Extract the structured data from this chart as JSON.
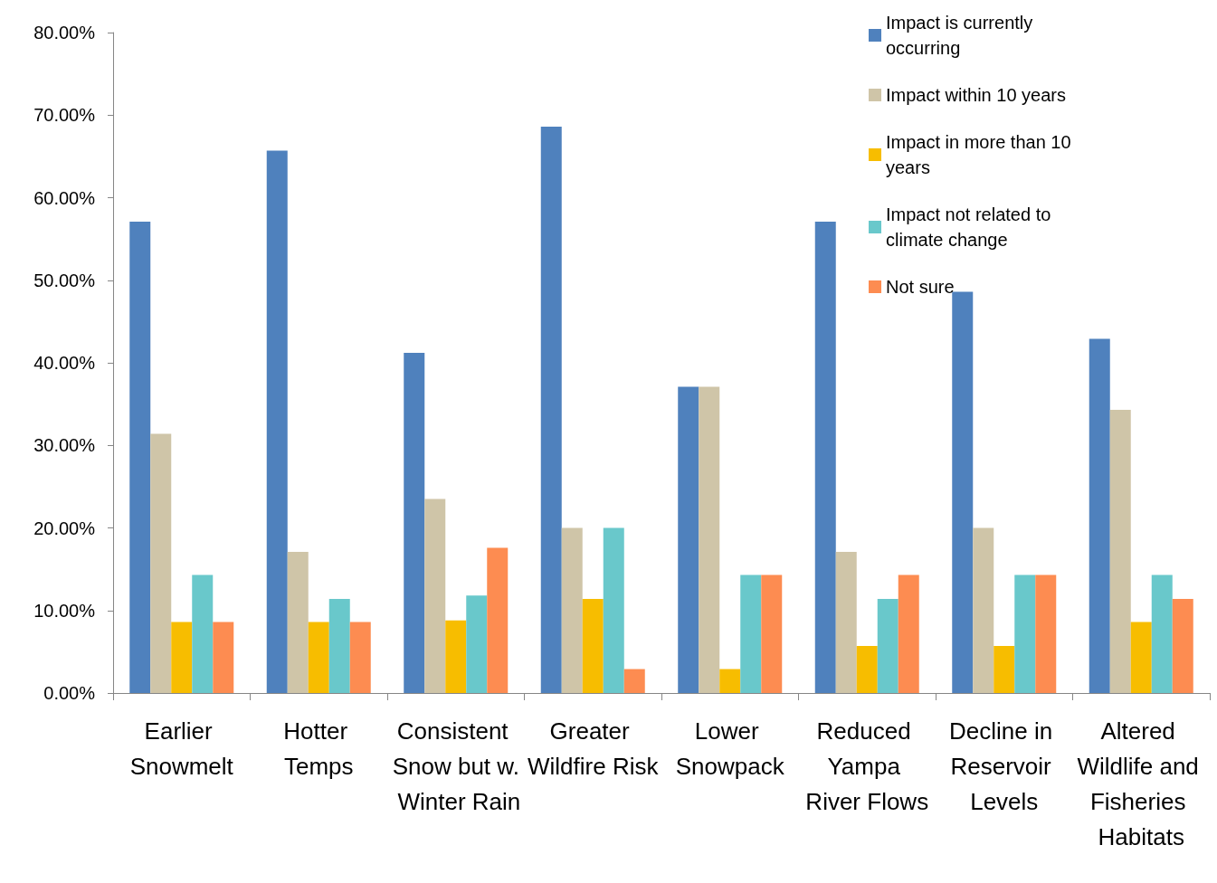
{
  "chart_data": {
    "type": "bar",
    "categories": [
      "Earlier Snowmelt",
      "Hotter Temps",
      "Consistent Snow but w. Winter Rain",
      "Greater Wildfire Risk",
      "Lower Snowpack",
      "Reduced Yampa River Flows",
      "Decline in Reservoir Levels",
      "Altered Wildlife and Fisheries Habitats"
    ],
    "series": [
      {
        "name": "Impact is currently occurring",
        "color": "#4f81bd",
        "values": [
          57.1,
          65.7,
          41.2,
          68.6,
          37.1,
          57.1,
          48.6,
          42.9
        ]
      },
      {
        "name": "Impact within 10 years",
        "color": "#cfc5a8",
        "values": [
          31.4,
          17.1,
          23.5,
          20.0,
          37.1,
          17.1,
          20.0,
          34.3
        ]
      },
      {
        "name": "Impact in more than 10 years",
        "color": "#f7bd00",
        "values": [
          8.6,
          8.6,
          8.8,
          11.4,
          2.9,
          5.7,
          5.7,
          8.6
        ]
      },
      {
        "name": "Impact not related to climate change",
        "color": "#69c8cb",
        "values": [
          14.3,
          11.4,
          11.8,
          20.0,
          14.3,
          11.4,
          14.3,
          14.3
        ]
      },
      {
        "name": "Not sure",
        "color": "#fd8c51",
        "values": [
          8.6,
          8.6,
          17.6,
          2.9,
          14.3,
          14.3,
          14.3,
          11.4
        ]
      }
    ],
    "ylim": [
      0,
      80
    ],
    "yticks": [
      {
        "value": 0,
        "label": "0.00%"
      },
      {
        "value": 10,
        "label": "10.00%"
      },
      {
        "value": 20,
        "label": "20.00%"
      },
      {
        "value": 30,
        "label": "30.00%"
      },
      {
        "value": 40,
        "label": "40.00%"
      },
      {
        "value": 50,
        "label": "50.00%"
      },
      {
        "value": 60,
        "label": "60.00%"
      },
      {
        "value": 70,
        "label": "70.00%"
      },
      {
        "value": 80,
        "label": "80.00%"
      }
    ],
    "grid": false,
    "legend": "top right"
  }
}
